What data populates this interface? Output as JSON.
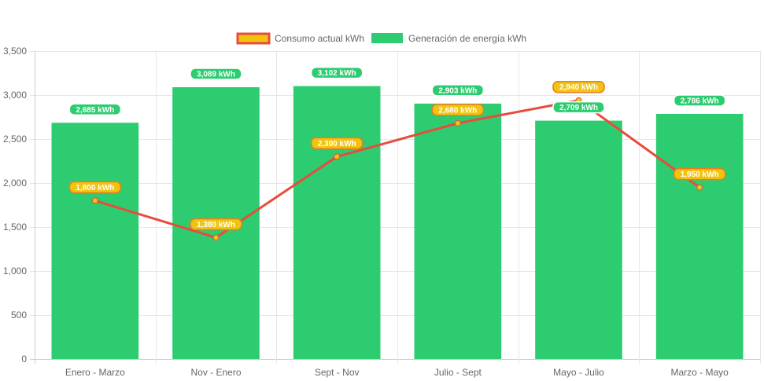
{
  "chart_data": {
    "type": "bar",
    "categories": [
      "Enero - Marzo",
      "Nov - Enero",
      "Sept - Nov",
      "Julio - Sept",
      "Mayo - Julio",
      "Marzo - Mayo"
    ],
    "series": [
      {
        "name": "Generación de energía kWh",
        "type": "bar",
        "color": "#2ecc71",
        "values": [
          2685,
          3089,
          3102,
          2903,
          2709,
          2786
        ],
        "labels": [
          "2,685 kWh",
          "3,089 kWh",
          "3,102 kWh",
          "2,903 kWh",
          "2,709 kWh",
          "2,786 kWh"
        ]
      },
      {
        "name": "Consumo actual kWh",
        "type": "line",
        "color": "#e74c3c",
        "point_color": "#f1c40f",
        "values": [
          1800,
          1380,
          2300,
          2680,
          2940,
          1950
        ],
        "labels": [
          "1,800 kWh",
          "1,380 kWh",
          "2,300 kWh",
          "2,680 kWh",
          "2,940 kWh",
          "1,950 kWh"
        ]
      }
    ],
    "legend_order": [
      "Consumo actual kWh",
      "Generación de energía kWh"
    ],
    "legend_position": "top",
    "ylim": [
      0,
      3500
    ],
    "yticks": [
      0,
      500,
      1000,
      1500,
      2000,
      2500,
      3000,
      3500
    ],
    "ytick_labels": [
      "0",
      "500",
      "1,000",
      "1,500",
      "2,000",
      "2,500",
      "3,000",
      "3,500"
    ],
    "grid": true,
    "title": "",
    "xlabel": "",
    "ylabel": ""
  }
}
